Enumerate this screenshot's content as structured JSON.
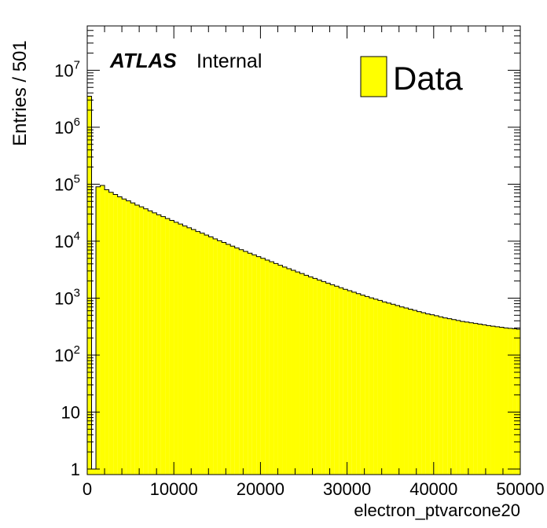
{
  "figure": {
    "atlas_label": "ATLAS",
    "internal_label": "Internal",
    "legend_entry": "Data",
    "x_axis_label": "electron_ptvarcone20",
    "y_axis_label": "Entries / 501"
  },
  "chart_data": {
    "type": "bar",
    "subtype": "histogram",
    "xlabel": "electron_ptvarcone20",
    "ylabel": "Entries / 501",
    "xlim": [
      0,
      50000
    ],
    "ylim": [
      0.8,
      60000000
    ],
    "y_scale": "log",
    "bin_width": 501,
    "fill_color": "#ffff00",
    "edge_color": "#000000",
    "legend": {
      "entries": [
        "Data"
      ],
      "position": "top-right"
    },
    "x_ticks": [
      0,
      10000,
      20000,
      30000,
      40000,
      50000
    ],
    "x_tick_labels": [
      "0",
      "10000",
      "20000",
      "30000",
      "40000",
      "50000"
    ],
    "y_ticks": [
      1,
      10,
      100,
      1000,
      10000,
      100000,
      1000000,
      10000000
    ],
    "y_tick_labels": [
      "1",
      "10",
      "10^2",
      "10^3",
      "10^4",
      "10^5",
      "10^6",
      "10^7"
    ],
    "series": [
      {
        "name": "Data",
        "bin_edges_start": 0,
        "values": [
          3500000,
          1,
          90000,
          95000,
          80000,
          72000,
          66000,
          60000,
          55000,
          51000,
          47000,
          43000,
          40000,
          37000,
          34000,
          31500,
          29000,
          27000,
          25000,
          23200,
          21500,
          20000,
          18500,
          17200,
          16000,
          14800,
          13800,
          12800,
          11900,
          11000,
          10200,
          9500,
          8800,
          8200,
          7600,
          7100,
          6600,
          6150,
          5750,
          5350,
          5000,
          4650,
          4350,
          4050,
          3780,
          3520,
          3290,
          3080,
          2880,
          2700,
          2520,
          2360,
          2220,
          2080,
          1950,
          1830,
          1720,
          1620,
          1520,
          1430,
          1350,
          1270,
          1200,
          1130,
          1070,
          1010,
          960,
          910,
          860,
          820,
          780,
          740,
          700,
          670,
          640,
          610,
          580,
          555,
          530,
          510,
          490,
          470,
          450,
          435,
          420,
          405,
          390,
          380,
          370,
          360,
          350,
          340,
          330,
          322,
          315,
          308,
          300,
          295,
          290,
          285
        ]
      }
    ]
  }
}
